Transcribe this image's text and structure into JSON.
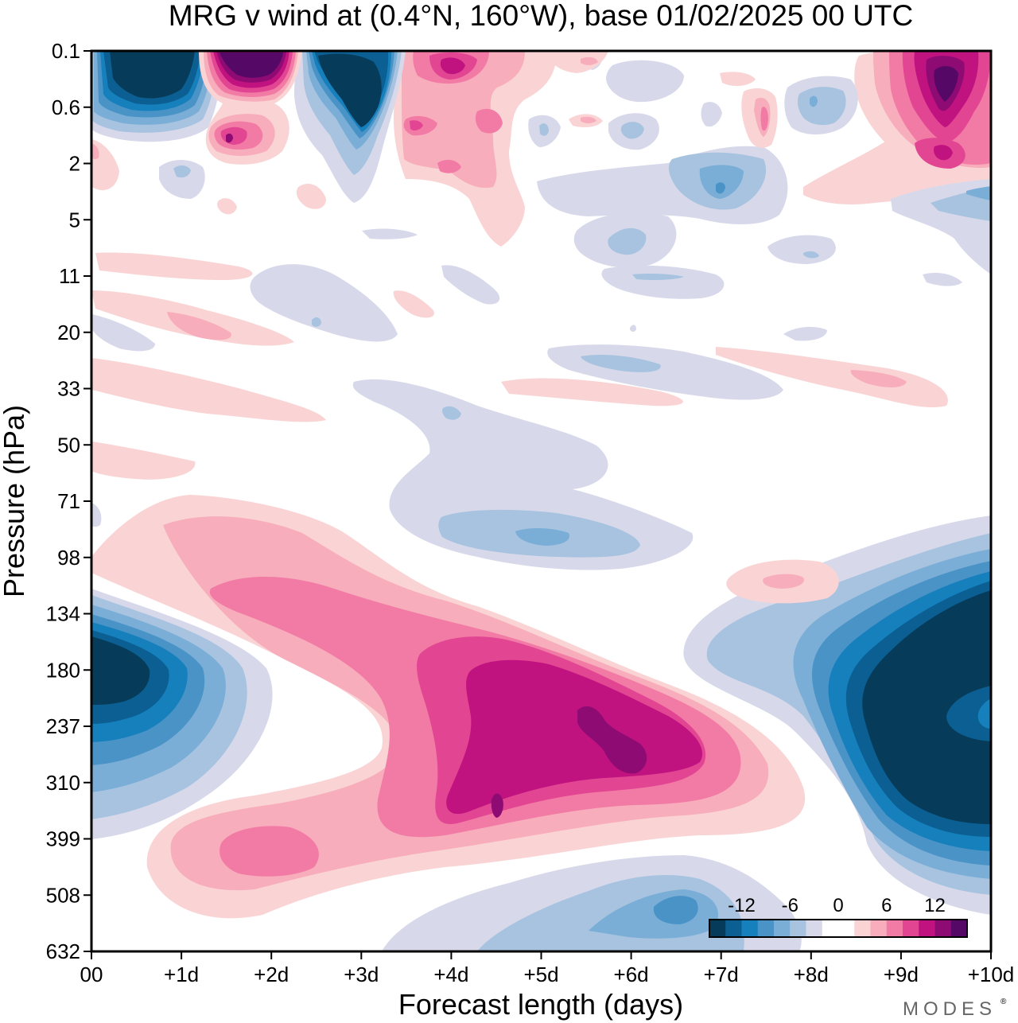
{
  "title": "MRG v wind at (0.4°N, 160°W),  base 01/02/2025  00 UTC",
  "logo": "MODES",
  "chart_data": {
    "type": "heatmap",
    "title": "MRG v wind at (0.4°N, 160°W),  base 01/02/2025  00 UTC",
    "xlabel": "Forecast length (days)",
    "ylabel": "Pressure (hPa)",
    "x_ticks": [
      "00",
      "+1d",
      "+2d",
      "+3d",
      "+4d",
      "+5d",
      "+6d",
      "+7d",
      "+8d",
      "+9d",
      "+10d"
    ],
    "y_ticks": [
      "0.1",
      "0.6",
      "2",
      "5",
      "11",
      "20",
      "33",
      "50",
      "71",
      "98",
      "134",
      "180",
      "237",
      "310",
      "399",
      "508",
      "632"
    ],
    "xlim": [
      0,
      10
    ],
    "ylim_hPa": [
      0.1,
      632
    ],
    "colorbar": {
      "tick_labels": [
        "-12",
        "-6",
        "0",
        "6",
        "12"
      ],
      "tick_values": [
        -12,
        -6,
        0,
        6,
        12
      ],
      "levels": [
        -16,
        -14,
        -12,
        -10,
        -8,
        -6,
        -4,
        -2,
        0,
        2,
        4,
        6,
        8,
        10,
        12,
        14,
        16
      ],
      "colors": [
        "#073b5a",
        "#0b5f92",
        "#1680bd",
        "#4a93c7",
        "#7aaed6",
        "#a7c3e0",
        "#d7d9ea",
        "#ffffff",
        "#ffffff",
        "#fad4d4",
        "#f7adbb",
        "#f27ba5",
        "#e24693",
        "#c0137f",
        "#8f0b74",
        "#560866"
      ]
    },
    "features": [
      {
        "x": 0.35,
        "y": 180,
        "value": -16
      },
      {
        "x": 9.5,
        "y": 200,
        "value": -16
      },
      {
        "x": 5.4,
        "y": 250,
        "value": 14
      },
      {
        "x": 6.5,
        "y": 580,
        "value": -8
      },
      {
        "x": 5.5,
        "y": 85,
        "value": -6
      },
      {
        "x": 0.35,
        "y": 0.4,
        "value": -16
      },
      {
        "x": 1.85,
        "y": 0.25,
        "value": 16
      },
      {
        "x": 3.0,
        "y": 0.5,
        "value": -16
      },
      {
        "x": 9.5,
        "y": 0.4,
        "value": 16
      },
      {
        "x": 4.0,
        "y": 0.3,
        "value": 10
      }
    ]
  }
}
